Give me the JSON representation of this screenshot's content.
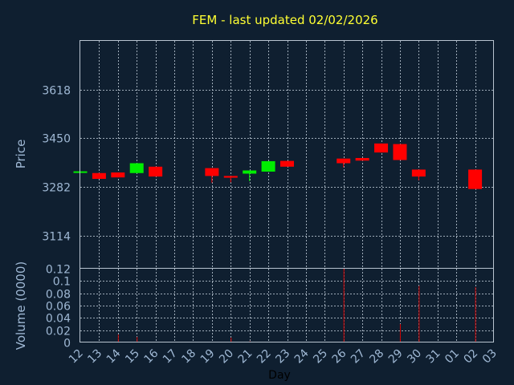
{
  "chart_data": {
    "type": "candlestick",
    "title": "FEM - last updated 02/02/2026",
    "xlabel": "Day",
    "price_panel": {
      "ylabel": "Price",
      "ylim": [
        3000,
        3786
      ],
      "yticks": [
        3114,
        3282,
        3450,
        3618
      ],
      "grid": true,
      "up_color": "#00ee00",
      "down_color": "#ff0000"
    },
    "volume_panel": {
      "ylabel": "Volume (0000)",
      "ylim": [
        0,
        0.12
      ],
      "yticks": [
        0,
        0.02,
        0.04,
        0.06,
        0.08,
        0.1,
        0.12
      ],
      "ytick_labels": [
        "0",
        "0.02",
        "0.04",
        "0.06",
        "0.08",
        "0.1",
        "0.12"
      ],
      "bar_color": "#cc0000",
      "grid": true
    },
    "x_tick_labels": [
      "12",
      "13",
      "14",
      "15",
      "16",
      "17",
      "18",
      "19",
      "20",
      "21",
      "22",
      "23",
      "24",
      "25",
      "26",
      "27",
      "28",
      "29",
      "30",
      "31",
      "01",
      "02",
      "03"
    ],
    "candles": [
      {
        "day": "12",
        "open": 3332,
        "close": 3336,
        "high": 3336,
        "low": 3332,
        "volume": 0.0
      },
      {
        "day": "13",
        "open": 3330,
        "close": 3310,
        "high": 3330,
        "low": 3310,
        "volume": 0.0
      },
      {
        "day": "14",
        "open": 3332,
        "close": 3315,
        "high": 3332,
        "low": 3315,
        "volume": 0.013
      },
      {
        "day": "15",
        "open": 3330,
        "close": 3364,
        "high": 3364,
        "low": 3330,
        "volume": 0.009
      },
      {
        "day": "16",
        "open": 3352,
        "close": 3318,
        "high": 3352,
        "low": 3318,
        "volume": 0.0
      },
      {
        "day": "19",
        "open": 3347,
        "close": 3320,
        "high": 3347,
        "low": 3297,
        "volume": 0.001
      },
      {
        "day": "20",
        "open": 3320,
        "close": 3314,
        "high": 3320,
        "low": 3298,
        "volume": 0.008
      },
      {
        "day": "21",
        "open": 3328,
        "close": 3339,
        "high": 3339,
        "low": 3302,
        "volume": 0.002
      },
      {
        "day": "22",
        "open": 3335,
        "close": 3371,
        "high": 3371,
        "low": 3335,
        "volume": 0.0
      },
      {
        "day": "23",
        "open": 3372,
        "close": 3352,
        "high": 3372,
        "low": 3352,
        "volume": 0.0
      },
      {
        "day": "26",
        "open": 3380,
        "close": 3364,
        "high": 3380,
        "low": 3350,
        "volume": 0.12
      },
      {
        "day": "27",
        "open": 3382,
        "close": 3373,
        "high": 3382,
        "low": 3373,
        "volume": 0.0
      },
      {
        "day": "28",
        "open": 3432,
        "close": 3401,
        "high": 3432,
        "low": 3401,
        "volume": 0.0
      },
      {
        "day": "29",
        "open": 3430,
        "close": 3375,
        "high": 3430,
        "low": 3375,
        "volume": 0.03
      },
      {
        "day": "30",
        "open": 3342,
        "close": 3318,
        "high": 3342,
        "low": 3305,
        "volume": 0.092
      },
      {
        "day": "02",
        "open": 3342,
        "close": 3275,
        "high": 3342,
        "low": 3275,
        "volume": 0.09
      }
    ]
  }
}
